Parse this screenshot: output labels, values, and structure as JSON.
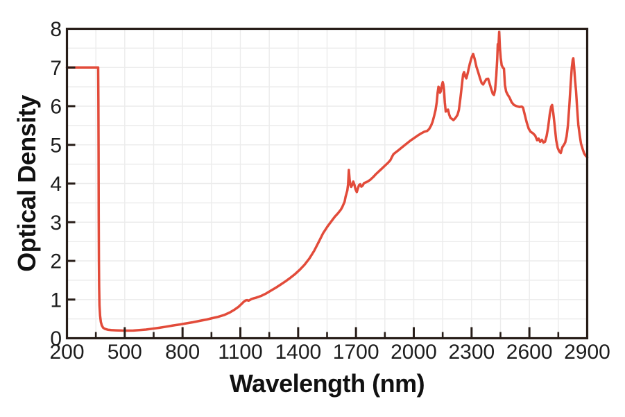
{
  "chart_data": {
    "type": "line",
    "title": "",
    "xlabel": "Wavelength (nm)",
    "ylabel": "Optical Density",
    "xlim": [
      200,
      2900
    ],
    "ylim": [
      0,
      8
    ],
    "grid": {
      "on": true,
      "x_values": [
        350,
        500,
        650,
        800,
        950,
        1100,
        1250,
        1400,
        1550,
        1700,
        1850,
        2000,
        2150,
        2300,
        2450,
        2600,
        2750
      ],
      "y_values": [
        0.5,
        1.0,
        1.5,
        2.0,
        2.5,
        3.0,
        3.5,
        4.0,
        4.5,
        5.0,
        5.5,
        6.0,
        6.5,
        7.0,
        7.5
      ]
    },
    "x_axis": {
      "major_ticks": [
        200,
        500,
        800,
        1100,
        1400,
        1700,
        2000,
        2300,
        2600,
        2900
      ],
      "tick_labels": [
        "200",
        "500",
        "800",
        "1100",
        "1400",
        "1700",
        "2000",
        "2300",
        "2600",
        "2900"
      ],
      "minor_ticks": [
        350,
        650,
        950,
        1250,
        1550,
        1850,
        2150,
        2450,
        2750
      ]
    },
    "y_axis": {
      "major_ticks": [
        0,
        1,
        2,
        3,
        4,
        5,
        6,
        7,
        8
      ],
      "tick_labels": [
        "0",
        "1",
        "2",
        "3",
        "4",
        "5",
        "6",
        "7",
        "8"
      ]
    },
    "legend": {
      "visible": false
    },
    "style": {
      "line_color": "#e24b3a",
      "axis_color": "#271d18",
      "grid_color": "#ececec",
      "label_color": "#1d1d1d",
      "background": "#ffffff"
    },
    "series": [
      {
        "name": "optical_density",
        "color": "#e24b3a",
        "points": [
          [
            200,
            7
          ],
          [
            260,
            7
          ],
          [
            320,
            7
          ],
          [
            350,
            7
          ],
          [
            358,
            7
          ],
          [
            362,
            7
          ],
          [
            363,
            6.2
          ],
          [
            364,
            4.8
          ],
          [
            365,
            3.2
          ],
          [
            366,
            2.0
          ],
          [
            367,
            1.35
          ],
          [
            369,
            0.85
          ],
          [
            372,
            0.58
          ],
          [
            376,
            0.42
          ],
          [
            381,
            0.33
          ],
          [
            388,
            0.27
          ],
          [
            398,
            0.24
          ],
          [
            412,
            0.22
          ],
          [
            430,
            0.21
          ],
          [
            455,
            0.205
          ],
          [
            485,
            0.2
          ],
          [
            515,
            0.198
          ],
          [
            545,
            0.2
          ],
          [
            575,
            0.21
          ],
          [
            610,
            0.225
          ],
          [
            645,
            0.247
          ],
          [
            680,
            0.27
          ],
          [
            715,
            0.3
          ],
          [
            750,
            0.33
          ],
          [
            785,
            0.355
          ],
          [
            820,
            0.385
          ],
          [
            855,
            0.415
          ],
          [
            890,
            0.45
          ],
          [
            925,
            0.485
          ],
          [
            955,
            0.52
          ],
          [
            985,
            0.555
          ],
          [
            1015,
            0.6
          ],
          [
            1045,
            0.665
          ],
          [
            1070,
            0.74
          ],
          [
            1090,
            0.81
          ],
          [
            1105,
            0.88
          ],
          [
            1117,
            0.94
          ],
          [
            1127,
            0.975
          ],
          [
            1135,
            0.985
          ],
          [
            1143,
            0.972
          ],
          [
            1150,
            0.99
          ],
          [
            1158,
            1.015
          ],
          [
            1168,
            1.03
          ],
          [
            1180,
            1.045
          ],
          [
            1195,
            1.07
          ],
          [
            1210,
            1.1
          ],
          [
            1235,
            1.16
          ],
          [
            1260,
            1.235
          ],
          [
            1285,
            1.31
          ],
          [
            1310,
            1.39
          ],
          [
            1335,
            1.475
          ],
          [
            1360,
            1.565
          ],
          [
            1385,
            1.665
          ],
          [
            1410,
            1.78
          ],
          [
            1433,
            1.9
          ],
          [
            1458,
            2.06
          ],
          [
            1483,
            2.26
          ],
          [
            1508,
            2.5
          ],
          [
            1530,
            2.72
          ],
          [
            1552,
            2.89
          ],
          [
            1572,
            3.02
          ],
          [
            1590,
            3.14
          ],
          [
            1608,
            3.24
          ],
          [
            1622,
            3.33
          ],
          [
            1629,
            3.39
          ],
          [
            1635,
            3.46
          ],
          [
            1641,
            3.53
          ],
          [
            1646,
            3.66
          ],
          [
            1650,
            3.73
          ],
          [
            1655,
            3.82
          ],
          [
            1659,
            3.98
          ],
          [
            1663,
            4.35
          ],
          [
            1667,
            4.1
          ],
          [
            1671,
            3.97
          ],
          [
            1675,
            3.91
          ],
          [
            1680,
            3.96
          ],
          [
            1686,
            4.05
          ],
          [
            1692,
            3.97
          ],
          [
            1698,
            3.85
          ],
          [
            1704,
            3.78
          ],
          [
            1710,
            3.87
          ],
          [
            1716,
            3.96
          ],
          [
            1722,
            3.98
          ],
          [
            1728,
            3.92
          ],
          [
            1735,
            3.95
          ],
          [
            1742,
            4.01
          ],
          [
            1752,
            4.03
          ],
          [
            1763,
            4.06
          ],
          [
            1775,
            4.1
          ],
          [
            1790,
            4.17
          ],
          [
            1805,
            4.25
          ],
          [
            1820,
            4.32
          ],
          [
            1835,
            4.39
          ],
          [
            1850,
            4.46
          ],
          [
            1865,
            4.53
          ],
          [
            1878,
            4.6
          ],
          [
            1888,
            4.7
          ],
          [
            1895,
            4.76
          ],
          [
            1905,
            4.8
          ],
          [
            1920,
            4.86
          ],
          [
            1940,
            4.94
          ],
          [
            1960,
            5.02
          ],
          [
            1980,
            5.1
          ],
          [
            2000,
            5.17
          ],
          [
            2020,
            5.24
          ],
          [
            2040,
            5.3
          ],
          [
            2055,
            5.34
          ],
          [
            2070,
            5.36
          ],
          [
            2080,
            5.41
          ],
          [
            2090,
            5.5
          ],
          [
            2098,
            5.6
          ],
          [
            2106,
            5.75
          ],
          [
            2113,
            5.9
          ],
          [
            2119,
            6.1
          ],
          [
            2124,
            6.35
          ],
          [
            2128,
            6.5
          ],
          [
            2132,
            6.47
          ],
          [
            2136,
            6.35
          ],
          [
            2140,
            6.38
          ],
          [
            2145,
            6.52
          ],
          [
            2150,
            6.62
          ],
          [
            2153,
            6.57
          ],
          [
            2157,
            6.42
          ],
          [
            2161,
            6.1
          ],
          [
            2166,
            5.86
          ],
          [
            2172,
            5.88
          ],
          [
            2178,
            5.91
          ],
          [
            2184,
            5.78
          ],
          [
            2190,
            5.7
          ],
          [
            2198,
            5.67
          ],
          [
            2206,
            5.64
          ],
          [
            2214,
            5.68
          ],
          [
            2220,
            5.72
          ],
          [
            2227,
            5.78
          ],
          [
            2234,
            5.9
          ],
          [
            2242,
            6.2
          ],
          [
            2250,
            6.55
          ],
          [
            2256,
            6.82
          ],
          [
            2261,
            6.88
          ],
          [
            2267,
            6.77
          ],
          [
            2273,
            6.72
          ],
          [
            2281,
            6.88
          ],
          [
            2291,
            7.1
          ],
          [
            2301,
            7.27
          ],
          [
            2308,
            7.35
          ],
          [
            2316,
            7.22
          ],
          [
            2325,
            7.02
          ],
          [
            2334,
            6.88
          ],
          [
            2343,
            6.73
          ],
          [
            2352,
            6.6
          ],
          [
            2360,
            6.56
          ],
          [
            2368,
            6.63
          ],
          [
            2377,
            6.7
          ],
          [
            2386,
            6.71
          ],
          [
            2394,
            6.58
          ],
          [
            2402,
            6.44
          ],
          [
            2410,
            6.32
          ],
          [
            2416,
            6.29
          ],
          [
            2422,
            6.42
          ],
          [
            2428,
            6.78
          ],
          [
            2433,
            7.22
          ],
          [
            2436,
            7.6
          ],
          [
            2439,
            7.46
          ],
          [
            2443,
            7.92
          ],
          [
            2447,
            7.5
          ],
          [
            2451,
            7.25
          ],
          [
            2456,
            7.06
          ],
          [
            2462,
            7.0
          ],
          [
            2468,
            6.97
          ],
          [
            2473,
            6.55
          ],
          [
            2479,
            6.38
          ],
          [
            2487,
            6.3
          ],
          [
            2497,
            6.22
          ],
          [
            2508,
            6.1
          ],
          [
            2520,
            6.03
          ],
          [
            2534,
            6.0
          ],
          [
            2548,
            5.98
          ],
          [
            2560,
            5.99
          ],
          [
            2567,
            5.96
          ],
          [
            2576,
            5.78
          ],
          [
            2586,
            5.58
          ],
          [
            2596,
            5.42
          ],
          [
            2606,
            5.34
          ],
          [
            2618,
            5.3
          ],
          [
            2630,
            5.24
          ],
          [
            2640,
            5.12
          ],
          [
            2648,
            5.16
          ],
          [
            2656,
            5.08
          ],
          [
            2665,
            5.13
          ],
          [
            2673,
            5.06
          ],
          [
            2681,
            5.08
          ],
          [
            2689,
            5.22
          ],
          [
            2697,
            5.44
          ],
          [
            2706,
            5.8
          ],
          [
            2713,
            5.99
          ],
          [
            2718,
            6.03
          ],
          [
            2724,
            5.82
          ],
          [
            2731,
            5.5
          ],
          [
            2739,
            5.12
          ],
          [
            2747,
            4.92
          ],
          [
            2755,
            4.83
          ],
          [
            2763,
            4.79
          ],
          [
            2771,
            4.94
          ],
          [
            2779,
            5.0
          ],
          [
            2786,
            5.06
          ],
          [
            2793,
            5.22
          ],
          [
            2800,
            5.5
          ],
          [
            2807,
            6.0
          ],
          [
            2814,
            6.55
          ],
          [
            2820,
            7.0
          ],
          [
            2825,
            7.2
          ],
          [
            2828,
            7.24
          ],
          [
            2832,
            7.02
          ],
          [
            2837,
            6.68
          ],
          [
            2842,
            6.4
          ],
          [
            2848,
            5.92
          ],
          [
            2854,
            5.52
          ],
          [
            2861,
            5.25
          ],
          [
            2868,
            5.03
          ],
          [
            2876,
            4.9
          ],
          [
            2884,
            4.78
          ],
          [
            2892,
            4.72
          ],
          [
            2900,
            4.68
          ]
        ]
      }
    ]
  }
}
